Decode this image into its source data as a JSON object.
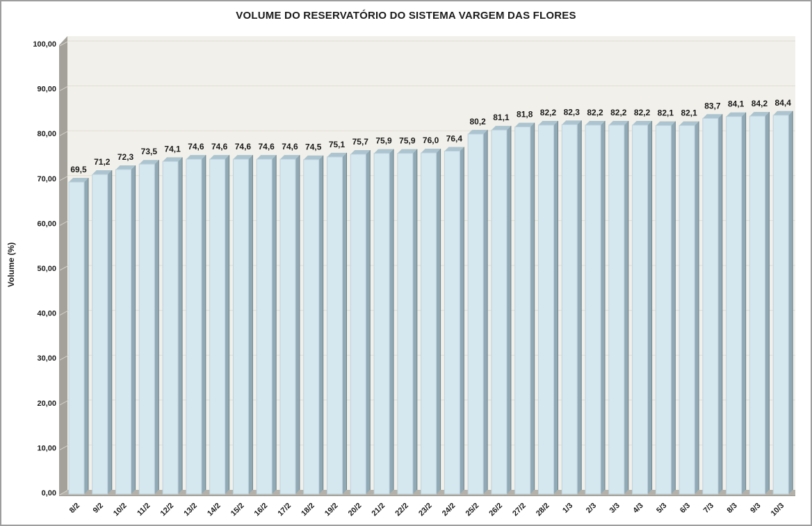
{
  "window": {
    "background": "#ffffff",
    "border_color": "#9d9d9d"
  },
  "chart_data": {
    "type": "bar",
    "style": "3d-column",
    "title": "VOLUME DO RESERVATÓRIO DO SISTEMA VARGEM DAS FLORES",
    "xlabel": "",
    "ylabel": "Volume (%)",
    "ylim": [
      0,
      100
    ],
    "ytick_step": 10,
    "ytick_labels": [
      "0,00",
      "10,00",
      "20,00",
      "30,00",
      "40,00",
      "50,00",
      "60,00",
      "70,00",
      "80,00",
      "90,00",
      "100,00"
    ],
    "grid": true,
    "legend_position": "none",
    "categories": [
      "8/2",
      "9/2",
      "10/2",
      "11/2",
      "12/2",
      "13/2",
      "14/2",
      "15/2",
      "16/2",
      "17/2",
      "18/2",
      "19/2",
      "20/2",
      "21/2",
      "22/2",
      "23/2",
      "24/2",
      "25/2",
      "26/2",
      "27/2",
      "28/2",
      "1/3",
      "2/3",
      "3/3",
      "4/3",
      "5/3",
      "6/3",
      "7/3",
      "8/3",
      "9/3",
      "10/3"
    ],
    "values": [
      69.5,
      71.2,
      72.3,
      73.5,
      74.1,
      74.6,
      74.6,
      74.6,
      74.6,
      74.6,
      74.5,
      75.1,
      75.7,
      75.9,
      75.9,
      76.0,
      76.4,
      80.2,
      81.1,
      81.8,
      82.2,
      82.3,
      82.2,
      82.2,
      82.2,
      82.1,
      82.1,
      83.7,
      84.1,
      84.2,
      84.4
    ],
    "value_labels": [
      "69,5",
      "71,2",
      "72,3",
      "73,5",
      "74,1",
      "74,6",
      "74,6",
      "74,6",
      "74,6",
      "74,6",
      "74,5",
      "75,1",
      "75,7",
      "75,9",
      "75,9",
      "76,0",
      "76,4",
      "80,2",
      "81,1",
      "81,8",
      "82,2",
      "82,3",
      "82,2",
      "82,2",
      "82,2",
      "82,1",
      "82,1",
      "83,7",
      "84,1",
      "84,2",
      "84,4"
    ],
    "colors": {
      "bar_front": "#d5e7ef",
      "bar_side": "#90a9b4",
      "bar_side_edge": "#6b838e",
      "bar_top": "#abc4cf",
      "bar_outline": "#bcd1dc",
      "plot_background": "#f2f0ea",
      "gridline": "#dedcd4",
      "wall": "#a3a199",
      "floor": "#b3b1a9",
      "floor_edge": "#98968e",
      "tick": "#d4d2ca",
      "text": "#1a1a1a"
    }
  }
}
